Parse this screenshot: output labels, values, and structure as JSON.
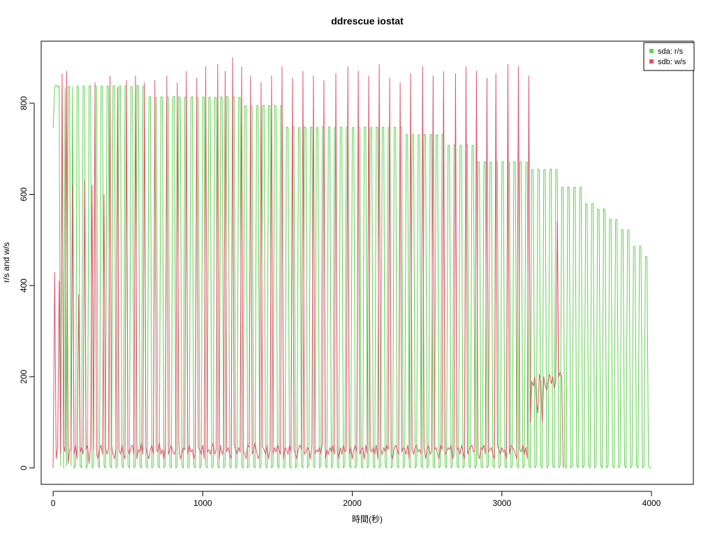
{
  "chart_data": {
    "type": "line",
    "title": "ddrescue iostat",
    "xlabel": "時間(秒)",
    "ylabel": "r/s and w/s",
    "xlim": [
      -80,
      4280
    ],
    "ylim": [
      -36,
      936
    ],
    "x_ticks": [
      0,
      1000,
      2000,
      3000,
      4000
    ],
    "y_ticks": [
      0,
      200,
      400,
      600,
      800
    ],
    "x_tick_labels": [
      "0",
      "1000",
      "2000",
      "3000",
      "4000"
    ],
    "y_tick_labels": [
      "0",
      "200",
      "400",
      "600",
      "800"
    ],
    "legend_position": "top-right",
    "grid": false,
    "sampling_note": "values sampled every 10 s",
    "series": [
      {
        "name": "sda: r/s",
        "color": "#61D04F",
        "x_start": 0,
        "x_step": 10,
        "values": [
          745,
          835,
          840,
          835,
          838,
          5,
          836,
          0,
          834,
          5,
          835,
          838,
          5,
          836,
          0,
          5,
          838,
          835,
          5,
          0,
          838,
          836,
          0,
          5,
          837,
          839,
          0,
          5,
          838,
          836,
          5,
          0,
          837,
          838,
          5,
          0,
          838,
          836,
          5,
          0,
          837,
          838,
          0,
          5,
          836,
          838,
          5,
          0,
          837,
          839,
          5,
          0,
          837,
          835,
          0,
          5,
          839,
          838,
          5,
          0,
          837,
          836,
          5,
          0,
          812,
          815,
          0,
          5,
          813,
          812,
          5,
          0,
          814,
          813,
          0,
          5,
          812,
          814,
          5,
          0,
          813,
          815,
          0,
          5,
          814,
          812,
          5,
          0,
          813,
          814,
          0,
          5,
          812,
          815,
          5,
          0,
          813,
          812,
          0,
          5,
          814,
          813,
          5,
          0,
          812,
          814,
          0,
          5,
          813,
          812,
          5,
          0,
          814,
          813,
          0,
          5,
          815,
          813,
          5,
          0,
          812,
          814,
          0,
          5,
          813,
          812,
          5,
          0,
          795,
          794,
          0,
          5,
          796,
          793,
          5,
          0,
          794,
          795,
          0,
          5,
          793,
          796,
          5,
          0,
          795,
          794,
          0,
          5,
          796,
          793,
          5,
          0,
          794,
          795,
          0,
          5,
          748,
          746,
          5,
          0,
          747,
          748,
          0,
          5,
          746,
          747,
          5,
          0,
          748,
          746,
          0,
          5,
          747,
          748,
          5,
          0,
          746,
          747,
          0,
          5,
          748,
          746,
          5,
          0,
          747,
          748,
          0,
          5,
          746,
          747,
          5,
          0,
          748,
          746,
          0,
          5,
          747,
          748,
          5,
          0,
          746,
          747,
          0,
          5,
          748,
          746,
          5,
          0,
          747,
          748,
          0,
          5,
          746,
          747,
          5,
          0,
          748,
          746,
          0,
          5,
          747,
          748,
          5,
          0,
          746,
          747,
          0,
          5,
          748,
          746,
          5,
          0,
          747,
          748,
          0,
          5,
          732,
          730,
          5,
          0,
          731,
          732,
          0,
          5,
          730,
          731,
          5,
          0,
          732,
          730,
          0,
          5,
          731,
          732,
          5,
          0,
          730,
          731,
          0,
          5,
          732,
          730,
          5,
          0,
          708,
          707,
          0,
          5,
          709,
          706,
          5,
          0,
          707,
          708,
          0,
          5,
          706,
          709,
          5,
          0,
          708,
          707,
          0,
          5,
          672,
          670,
          5,
          0,
          671,
          672,
          0,
          5,
          670,
          671,
          5,
          0,
          672,
          670,
          0,
          5,
          671,
          672,
          5,
          0,
          670,
          671,
          0,
          5,
          672,
          670,
          5,
          0,
          671,
          672,
          0,
          5,
          670,
          671,
          5,
          0,
          655,
          654,
          0,
          5,
          656,
          653,
          5,
          0,
          654,
          655,
          0,
          5,
          653,
          656,
          5,
          0,
          655,
          654,
          0,
          5,
          616,
          615,
          5,
          0,
          617,
          614,
          0,
          5,
          615,
          616,
          5,
          0,
          614,
          617,
          0,
          5,
          580,
          578,
          5,
          0,
          579,
          580,
          0,
          5,
          568,
          567,
          5,
          0,
          569,
          566,
          0,
          5,
          545,
          546,
          5,
          0,
          544,
          545,
          0,
          5,
          522,
          523,
          5,
          0,
          521,
          522,
          0,
          5,
          486,
          485,
          5,
          0,
          487,
          486,
          0,
          5,
          464,
          463,
          5,
          0,
          0
        ]
      },
      {
        "name": "sdb: w/s",
        "color": "#DF536B",
        "x_start": 0,
        "x_step": 10,
        "values": [
          0,
          430,
          20,
          45,
          410,
          30,
          865,
          50,
          35,
          870,
          10,
          40,
          40,
          620,
          30,
          50,
          20,
          380,
          35,
          45,
          30,
          630,
          40,
          50,
          10,
          45,
          620,
          40,
          845,
          30,
          20,
          40,
          50,
          30,
          600,
          45,
          30,
          40,
          860,
          50,
          30,
          20,
          45,
          835,
          40,
          30,
          50,
          30,
          20,
          850,
          40,
          30,
          45,
          50,
          30,
          860,
          20,
          40,
          35,
          55,
          30,
          845,
          45,
          30,
          20,
          40,
          50,
          30,
          850,
          40,
          35,
          55,
          30,
          40,
          20,
          45,
          860,
          30,
          40,
          50,
          35,
          30,
          40,
          845,
          55,
          20,
          30,
          45,
          40,
          870,
          30,
          50,
          35,
          40,
          20,
          30,
          855,
          45,
          40,
          30,
          50,
          20,
          880,
          35,
          40,
          30,
          45,
          55,
          30,
          40,
          885,
          20,
          50,
          30,
          40,
          870,
          35,
          45,
          30,
          20,
          900,
          50,
          40,
          30,
          45,
          35,
          880,
          40,
          30,
          20,
          50,
          45,
          860,
          30,
          40,
          55,
          35,
          20,
          30,
          845,
          45,
          40,
          30,
          50,
          20,
          40,
          860,
          30,
          45,
          35,
          50,
          40,
          30,
          880,
          20,
          45,
          40,
          30,
          50,
          35,
          855,
          40,
          30,
          20,
          45,
          50,
          40,
          870,
          30,
          35,
          45,
          40,
          20,
          50,
          860,
          30,
          40,
          35,
          45,
          30,
          55,
          850,
          20,
          40,
          30,
          45,
          35,
          50,
          30,
          865,
          40,
          20,
          45,
          30,
          50,
          35,
          40,
          880,
          30,
          45,
          20,
          40,
          50,
          35,
          870,
          30,
          40,
          45,
          20,
          50,
          30,
          860,
          40,
          35,
          45,
          30,
          50,
          20,
          885,
          40,
          30,
          45,
          35,
          50,
          40,
          855,
          30,
          20,
          45,
          50,
          40,
          30,
          845,
          35,
          45,
          40,
          30,
          50,
          20,
          865,
          40,
          30,
          45,
          50,
          35,
          40,
          30,
          880,
          45,
          20,
          40,
          50,
          30,
          35,
          860,
          40,
          45,
          30,
          20,
          50,
          40,
          870,
          30,
          35,
          45,
          40,
          50,
          20,
          30,
          865,
          40,
          45,
          30,
          50,
          35,
          20,
          880,
          30,
          40,
          45,
          50,
          35,
          40,
          870,
          30,
          20,
          45,
          40,
          50,
          30,
          855,
          35,
          40,
          45,
          30,
          20,
          865,
          50,
          40,
          30,
          45,
          35,
          40,
          20,
          885,
          30,
          50,
          45,
          40,
          30,
          20,
          880,
          40,
          35,
          50,
          30,
          45,
          20,
          860,
          100,
          190,
          180,
          200,
          150,
          120,
          205,
          190,
          100,
          200,
          180,
          170,
          195,
          205,
          185,
          200,
          175,
          190,
          540,
          200,
          210,
          200,
          0
        ]
      }
    ]
  }
}
